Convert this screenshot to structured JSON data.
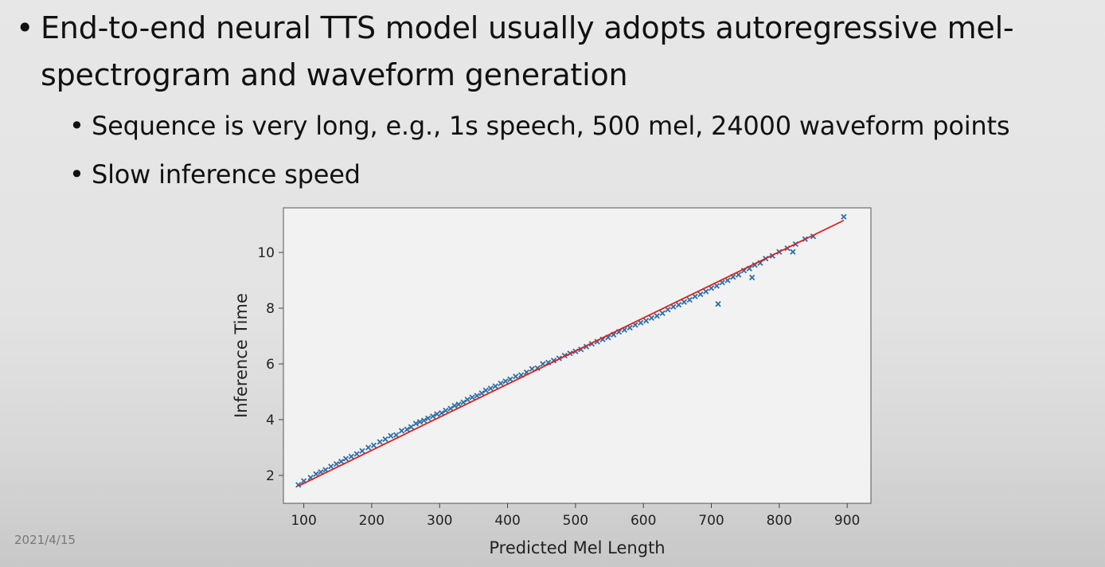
{
  "slide": {
    "bullets": [
      {
        "text": "End-to-end neural TTS model usually adopts autoregressive mel-spectrogram and waveform generation",
        "level": 1
      },
      {
        "text": "Sequence is very long, e.g., 1s speech, 500 mel, 24000 waveform points",
        "level": 2
      },
      {
        "text": "Slow inference speed",
        "level": 2
      }
    ],
    "bullet_symbol": "•",
    "date": "2021/4/15"
  },
  "chart_data": {
    "type": "scatter",
    "title": "",
    "xlabel": "Predicted Mel Length",
    "ylabel": "Inference Time",
    "xlim": [
      70,
      935
    ],
    "ylim": [
      1.0,
      11.6
    ],
    "xticks": [
      100,
      200,
      300,
      400,
      500,
      600,
      700,
      800,
      900
    ],
    "yticks": [
      2,
      4,
      6,
      8,
      10
    ],
    "grid": false,
    "legend": "none",
    "series": [
      {
        "kind": "scatter",
        "color": "#2b6fa8",
        "marker": "x",
        "x": [
          92,
          100,
          110,
          118,
          125,
          132,
          140,
          148,
          155,
          162,
          170,
          178,
          186,
          195,
          203,
          212,
          220,
          228,
          236,
          244,
          252,
          258,
          265,
          271,
          277,
          283,
          290,
          296,
          303,
          309,
          316,
          322,
          328,
          335,
          341,
          348,
          355,
          362,
          368,
          375,
          382,
          390,
          397,
          404,
          412,
          420,
          428,
          436,
          444,
          452,
          460,
          468,
          476,
          484,
          492,
          500,
          508,
          516,
          524,
          532,
          540,
          548,
          556,
          564,
          572,
          580,
          588,
          596,
          604,
          612,
          620,
          628,
          636,
          644,
          652,
          660,
          668,
          676,
          684,
          692,
          700,
          708,
          716,
          724,
          732,
          740,
          748,
          756,
          764,
          772,
          780,
          790,
          800,
          812,
          824,
          838,
          850,
          895,
          710,
          760,
          820
        ],
        "y": [
          1.66,
          1.8,
          1.92,
          2.05,
          2.12,
          2.2,
          2.32,
          2.41,
          2.5,
          2.6,
          2.68,
          2.77,
          2.88,
          3.0,
          3.08,
          3.2,
          3.3,
          3.42,
          3.45,
          3.6,
          3.65,
          3.74,
          3.86,
          3.92,
          3.97,
          4.05,
          4.12,
          4.2,
          4.24,
          4.33,
          4.4,
          4.5,
          4.55,
          4.62,
          4.72,
          4.8,
          4.86,
          4.95,
          5.05,
          5.12,
          5.2,
          5.3,
          5.38,
          5.45,
          5.55,
          5.6,
          5.7,
          5.82,
          5.85,
          6.0,
          6.05,
          6.12,
          6.2,
          6.3,
          6.38,
          6.45,
          6.52,
          6.62,
          6.72,
          6.8,
          6.88,
          6.95,
          7.05,
          7.15,
          7.22,
          7.3,
          7.4,
          7.48,
          7.55,
          7.65,
          7.72,
          7.82,
          7.95,
          8.05,
          8.12,
          8.22,
          8.3,
          8.42,
          8.5,
          8.6,
          8.72,
          8.8,
          8.92,
          9.0,
          9.12,
          9.2,
          9.35,
          9.42,
          9.55,
          9.62,
          9.78,
          9.88,
          10.02,
          10.15,
          10.3,
          10.48,
          10.58,
          11.28,
          8.15,
          9.1,
          10.02
        ]
      },
      {
        "kind": "line",
        "color": "#e0201b",
        "x": [
          92,
          895
        ],
        "y": [
          1.62,
          11.15
        ]
      }
    ]
  }
}
